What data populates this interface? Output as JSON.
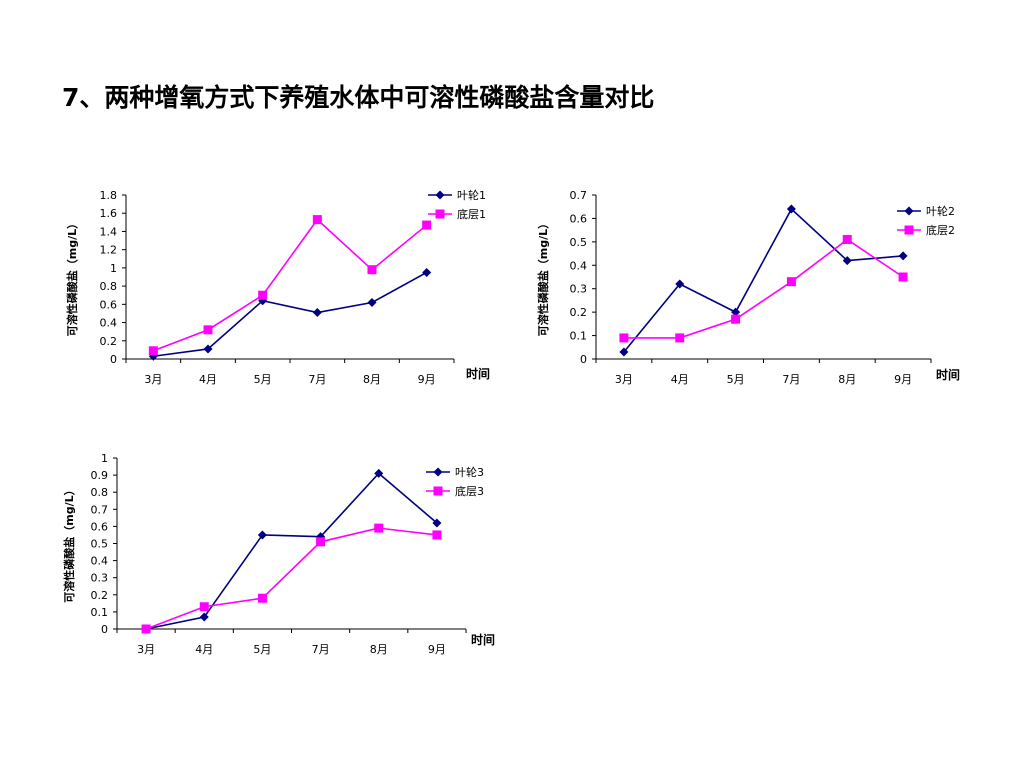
{
  "page_title": "7、两种增氧方式下养殖水体中可溶性磷酸盐含量对比",
  "colors": {
    "series_a": "#000080",
    "series_b": "#ff00ff",
    "axis": "#000000"
  },
  "chart_data": [
    {
      "type": "line",
      "title": "",
      "xlabel": "时间",
      "ylabel": "可溶性磷酸盐（mg/L）",
      "categories": [
        "3月",
        "4月",
        "5月",
        "7月",
        "8月",
        "9月"
      ],
      "ylim": [
        0,
        1.8
      ],
      "yticks": [
        "0",
        "0.2",
        "0.4",
        "0.6",
        "0.8",
        "1",
        "1.2",
        "1.4",
        "1.6",
        "1.8"
      ],
      "legend_position": "top-right",
      "series": [
        {
          "name": "叶轮1",
          "marker": "diamond",
          "color": "#000080",
          "values": [
            0.03,
            0.11,
            0.64,
            0.51,
            0.62,
            0.95
          ]
        },
        {
          "name": "底层1",
          "marker": "square",
          "color": "#ff00ff",
          "values": [
            0.09,
            0.32,
            0.7,
            1.53,
            0.98,
            1.47
          ]
        }
      ]
    },
    {
      "type": "line",
      "title": "",
      "xlabel": "时间",
      "ylabel": "可溶性磷酸盐（mg/L）",
      "categories": [
        "3月",
        "4月",
        "5月",
        "7月",
        "8月",
        "9月"
      ],
      "ylim": [
        0,
        0.7
      ],
      "yticks": [
        "0",
        "0.1",
        "0.2",
        "0.3",
        "0.4",
        "0.5",
        "0.6",
        "0.7"
      ],
      "legend_position": "right",
      "series": [
        {
          "name": "叶轮2",
          "marker": "diamond",
          "color": "#000080",
          "values": [
            0.03,
            0.32,
            0.2,
            0.64,
            0.42,
            0.44
          ]
        },
        {
          "name": "底层2",
          "marker": "square",
          "color": "#ff00ff",
          "values": [
            0.09,
            0.09,
            0.17,
            0.33,
            0.51,
            0.35
          ]
        }
      ]
    },
    {
      "type": "line",
      "title": "",
      "xlabel": "时间",
      "ylabel": "可溶性磷酸盐（mg/L）",
      "categories": [
        "3月",
        "4月",
        "5月",
        "7月",
        "8月",
        "9月"
      ],
      "ylim": [
        0,
        1
      ],
      "yticks": [
        "0",
        "0.1",
        "0.2",
        "0.3",
        "0.4",
        "0.5",
        "0.6",
        "0.7",
        "0.8",
        "0.9",
        "1"
      ],
      "legend_position": "top-right",
      "series": [
        {
          "name": "叶轮3",
          "marker": "diamond",
          "color": "#000080",
          "values": [
            0.0,
            0.07,
            0.55,
            0.54,
            0.91,
            0.62
          ]
        },
        {
          "name": "底层3",
          "marker": "square",
          "color": "#ff00ff",
          "values": [
            0.0,
            0.13,
            0.18,
            0.51,
            0.59,
            0.55
          ]
        }
      ]
    }
  ]
}
